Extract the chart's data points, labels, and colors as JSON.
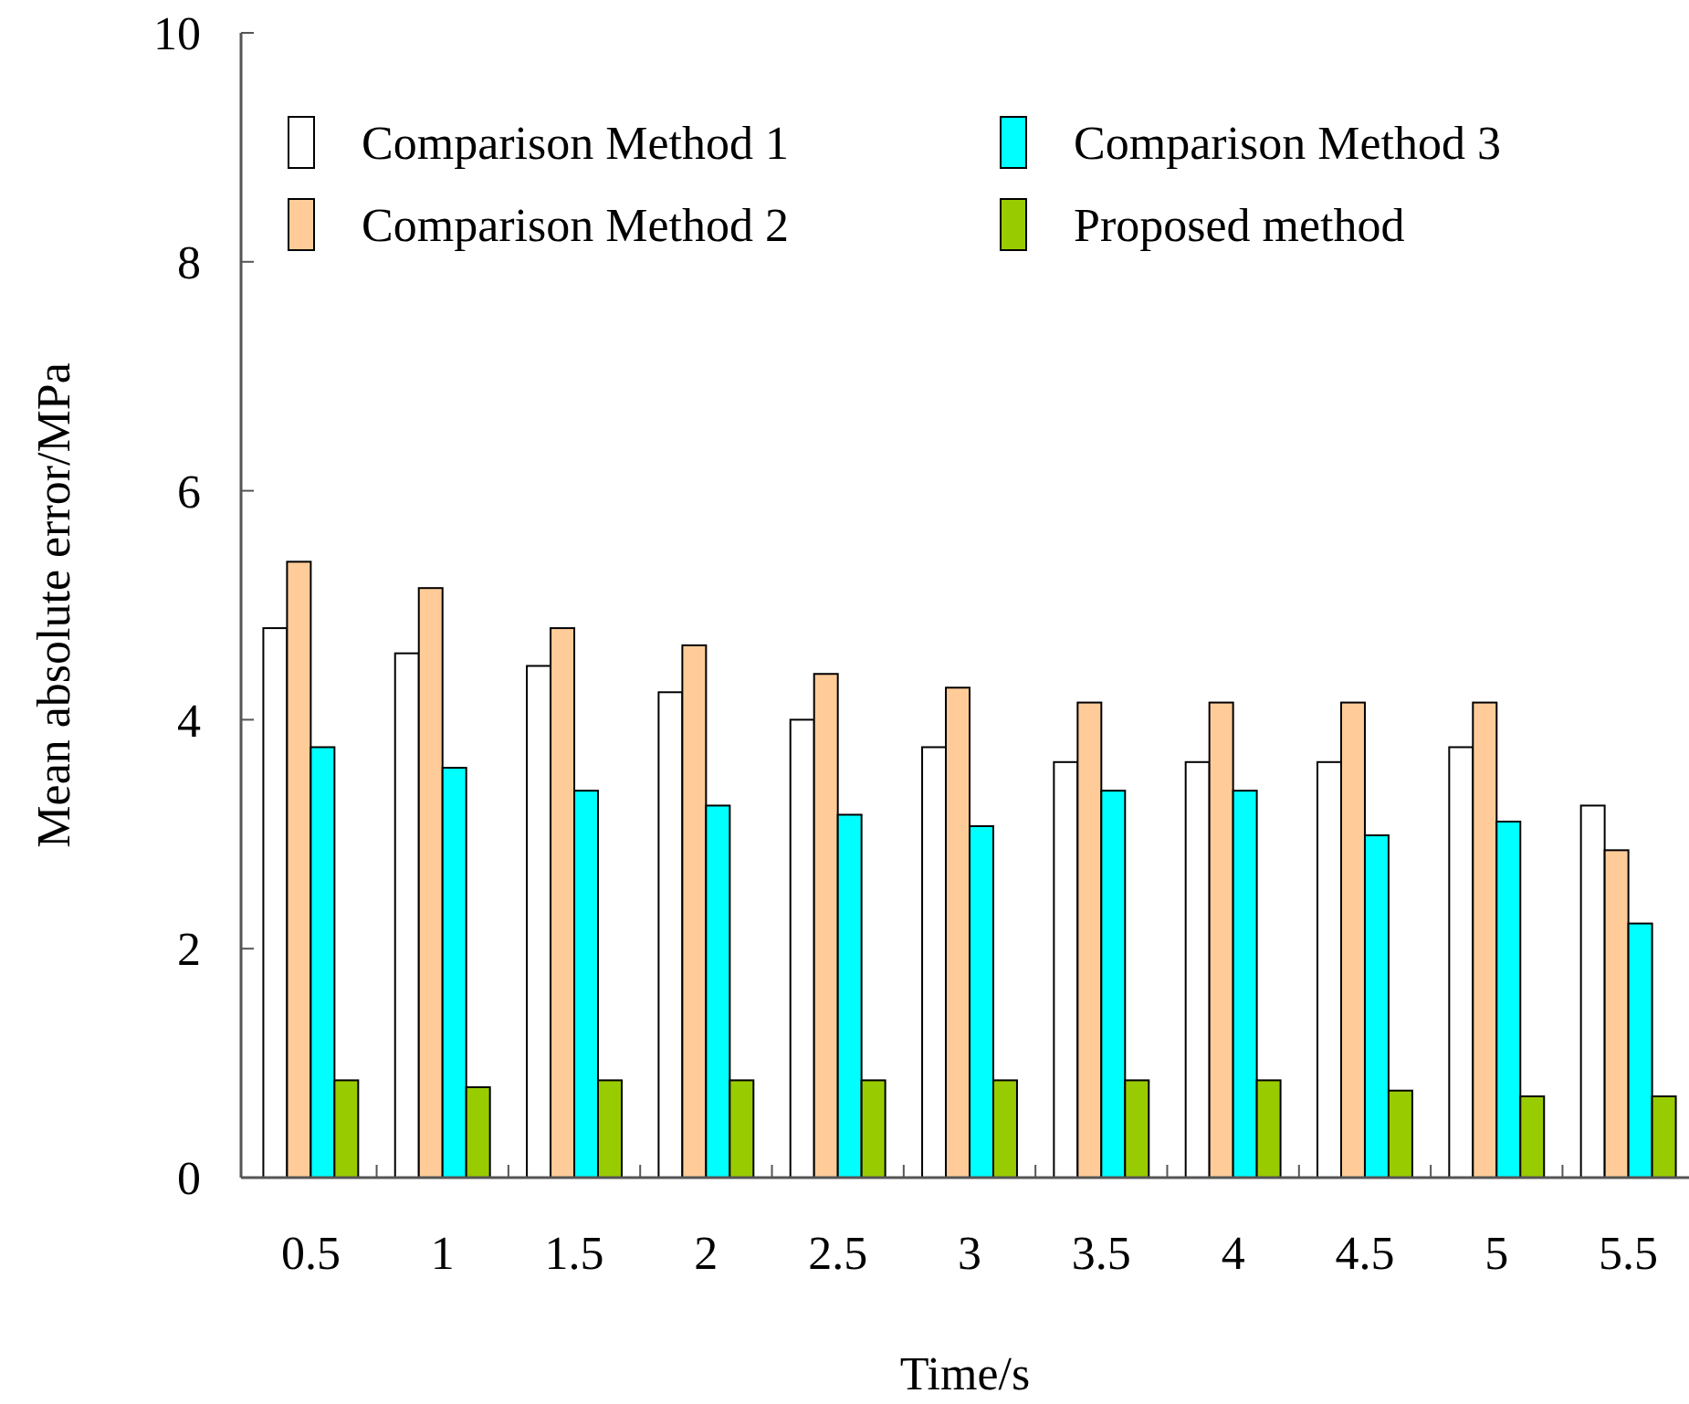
{
  "chart_data": {
    "type": "bar",
    "xlabel": "Time/s",
    "ylabel": "Mean absolute error/MPa",
    "categories": [
      "0.5",
      "1",
      "1.5",
      "2",
      "2.5",
      "3",
      "3.5",
      "4",
      "4.5",
      "5",
      "5.5"
    ],
    "series": [
      {
        "name": "Comparison Method 1",
        "color": "#ffffff",
        "values": [
          4.8,
          4.58,
          4.47,
          4.24,
          4.0,
          3.76,
          3.63,
          3.63,
          3.63,
          3.76,
          3.25
        ]
      },
      {
        "name": "Comparison Method 2",
        "color": "#ffcc99",
        "values": [
          5.38,
          5.15,
          4.8,
          4.65,
          4.4,
          4.28,
          4.15,
          4.15,
          4.15,
          4.15,
          2.86
        ]
      },
      {
        "name": "Comparison Method 3",
        "color": "#00ffff",
        "values": [
          3.76,
          3.58,
          3.38,
          3.25,
          3.17,
          3.07,
          3.38,
          3.38,
          2.99,
          3.11,
          2.22
        ]
      },
      {
        "name": "Proposed method",
        "color": "#99cc00",
        "values": [
          0.85,
          0.79,
          0.85,
          0.85,
          0.85,
          0.85,
          0.85,
          0.85,
          0.76,
          0.71,
          0.71
        ]
      }
    ],
    "ylim": [
      0,
      10
    ],
    "yticks": [
      0,
      2,
      4,
      6,
      8,
      10
    ],
    "grid": false,
    "legend": "top"
  }
}
